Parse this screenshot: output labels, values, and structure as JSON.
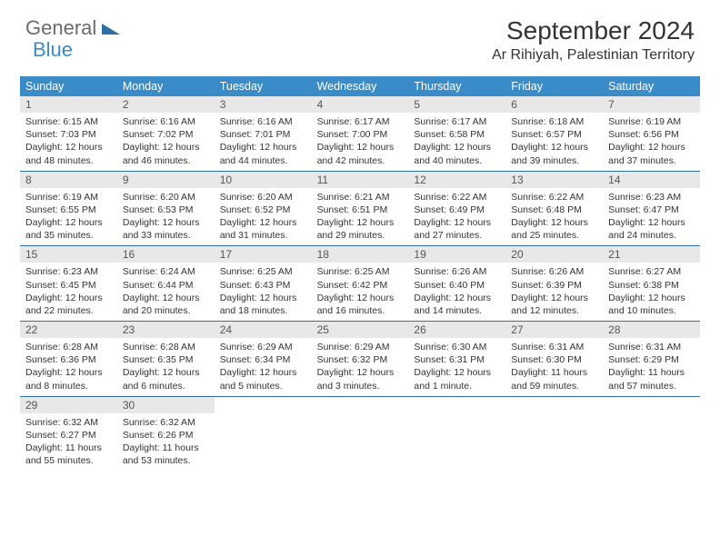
{
  "logo": {
    "text1": "General",
    "text2": "Blue"
  },
  "title": "September 2024",
  "location": "Ar Rihiyah, Palestinian Territory",
  "colors": {
    "header_bg": "#3a8cc8",
    "header_text": "#ffffff",
    "daynum_bg": "#e8e8e8",
    "week_border": "#2f6fa3",
    "logo_gray": "#6b6b6b",
    "logo_blue": "#3a8cc8"
  },
  "day_names": [
    "Sunday",
    "Monday",
    "Tuesday",
    "Wednesday",
    "Thursday",
    "Friday",
    "Saturday"
  ],
  "days": [
    {
      "n": "1",
      "sunrise": "Sunrise: 6:15 AM",
      "sunset": "Sunset: 7:03 PM",
      "day1": "Daylight: 12 hours",
      "day2": "and 48 minutes."
    },
    {
      "n": "2",
      "sunrise": "Sunrise: 6:16 AM",
      "sunset": "Sunset: 7:02 PM",
      "day1": "Daylight: 12 hours",
      "day2": "and 46 minutes."
    },
    {
      "n": "3",
      "sunrise": "Sunrise: 6:16 AM",
      "sunset": "Sunset: 7:01 PM",
      "day1": "Daylight: 12 hours",
      "day2": "and 44 minutes."
    },
    {
      "n": "4",
      "sunrise": "Sunrise: 6:17 AM",
      "sunset": "Sunset: 7:00 PM",
      "day1": "Daylight: 12 hours",
      "day2": "and 42 minutes."
    },
    {
      "n": "5",
      "sunrise": "Sunrise: 6:17 AM",
      "sunset": "Sunset: 6:58 PM",
      "day1": "Daylight: 12 hours",
      "day2": "and 40 minutes."
    },
    {
      "n": "6",
      "sunrise": "Sunrise: 6:18 AM",
      "sunset": "Sunset: 6:57 PM",
      "day1": "Daylight: 12 hours",
      "day2": "and 39 minutes."
    },
    {
      "n": "7",
      "sunrise": "Sunrise: 6:19 AM",
      "sunset": "Sunset: 6:56 PM",
      "day1": "Daylight: 12 hours",
      "day2": "and 37 minutes."
    },
    {
      "n": "8",
      "sunrise": "Sunrise: 6:19 AM",
      "sunset": "Sunset: 6:55 PM",
      "day1": "Daylight: 12 hours",
      "day2": "and 35 minutes."
    },
    {
      "n": "9",
      "sunrise": "Sunrise: 6:20 AM",
      "sunset": "Sunset: 6:53 PM",
      "day1": "Daylight: 12 hours",
      "day2": "and 33 minutes."
    },
    {
      "n": "10",
      "sunrise": "Sunrise: 6:20 AM",
      "sunset": "Sunset: 6:52 PM",
      "day1": "Daylight: 12 hours",
      "day2": "and 31 minutes."
    },
    {
      "n": "11",
      "sunrise": "Sunrise: 6:21 AM",
      "sunset": "Sunset: 6:51 PM",
      "day1": "Daylight: 12 hours",
      "day2": "and 29 minutes."
    },
    {
      "n": "12",
      "sunrise": "Sunrise: 6:22 AM",
      "sunset": "Sunset: 6:49 PM",
      "day1": "Daylight: 12 hours",
      "day2": "and 27 minutes."
    },
    {
      "n": "13",
      "sunrise": "Sunrise: 6:22 AM",
      "sunset": "Sunset: 6:48 PM",
      "day1": "Daylight: 12 hours",
      "day2": "and 25 minutes."
    },
    {
      "n": "14",
      "sunrise": "Sunrise: 6:23 AM",
      "sunset": "Sunset: 6:47 PM",
      "day1": "Daylight: 12 hours",
      "day2": "and 24 minutes."
    },
    {
      "n": "15",
      "sunrise": "Sunrise: 6:23 AM",
      "sunset": "Sunset: 6:45 PM",
      "day1": "Daylight: 12 hours",
      "day2": "and 22 minutes."
    },
    {
      "n": "16",
      "sunrise": "Sunrise: 6:24 AM",
      "sunset": "Sunset: 6:44 PM",
      "day1": "Daylight: 12 hours",
      "day2": "and 20 minutes."
    },
    {
      "n": "17",
      "sunrise": "Sunrise: 6:25 AM",
      "sunset": "Sunset: 6:43 PM",
      "day1": "Daylight: 12 hours",
      "day2": "and 18 minutes."
    },
    {
      "n": "18",
      "sunrise": "Sunrise: 6:25 AM",
      "sunset": "Sunset: 6:42 PM",
      "day1": "Daylight: 12 hours",
      "day2": "and 16 minutes."
    },
    {
      "n": "19",
      "sunrise": "Sunrise: 6:26 AM",
      "sunset": "Sunset: 6:40 PM",
      "day1": "Daylight: 12 hours",
      "day2": "and 14 minutes."
    },
    {
      "n": "20",
      "sunrise": "Sunrise: 6:26 AM",
      "sunset": "Sunset: 6:39 PM",
      "day1": "Daylight: 12 hours",
      "day2": "and 12 minutes."
    },
    {
      "n": "21",
      "sunrise": "Sunrise: 6:27 AM",
      "sunset": "Sunset: 6:38 PM",
      "day1": "Daylight: 12 hours",
      "day2": "and 10 minutes."
    },
    {
      "n": "22",
      "sunrise": "Sunrise: 6:28 AM",
      "sunset": "Sunset: 6:36 PM",
      "day1": "Daylight: 12 hours",
      "day2": "and 8 minutes."
    },
    {
      "n": "23",
      "sunrise": "Sunrise: 6:28 AM",
      "sunset": "Sunset: 6:35 PM",
      "day1": "Daylight: 12 hours",
      "day2": "and 6 minutes."
    },
    {
      "n": "24",
      "sunrise": "Sunrise: 6:29 AM",
      "sunset": "Sunset: 6:34 PM",
      "day1": "Daylight: 12 hours",
      "day2": "and 5 minutes."
    },
    {
      "n": "25",
      "sunrise": "Sunrise: 6:29 AM",
      "sunset": "Sunset: 6:32 PM",
      "day1": "Daylight: 12 hours",
      "day2": "and 3 minutes."
    },
    {
      "n": "26",
      "sunrise": "Sunrise: 6:30 AM",
      "sunset": "Sunset: 6:31 PM",
      "day1": "Daylight: 12 hours",
      "day2": "and 1 minute."
    },
    {
      "n": "27",
      "sunrise": "Sunrise: 6:31 AM",
      "sunset": "Sunset: 6:30 PM",
      "day1": "Daylight: 11 hours",
      "day2": "and 59 minutes."
    },
    {
      "n": "28",
      "sunrise": "Sunrise: 6:31 AM",
      "sunset": "Sunset: 6:29 PM",
      "day1": "Daylight: 11 hours",
      "day2": "and 57 minutes."
    },
    {
      "n": "29",
      "sunrise": "Sunrise: 6:32 AM",
      "sunset": "Sunset: 6:27 PM",
      "day1": "Daylight: 11 hours",
      "day2": "and 55 minutes."
    },
    {
      "n": "30",
      "sunrise": "Sunrise: 6:32 AM",
      "sunset": "Sunset: 6:26 PM",
      "day1": "Daylight: 11 hours",
      "day2": "and 53 minutes."
    }
  ]
}
